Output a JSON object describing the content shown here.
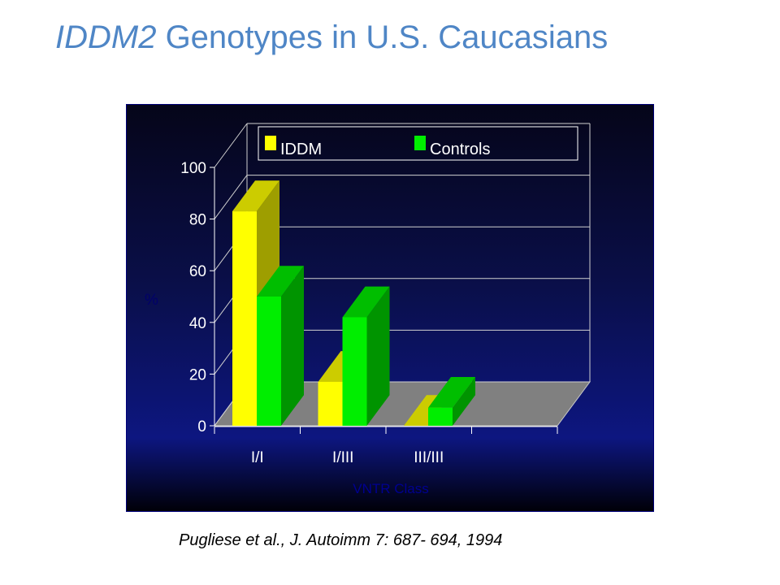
{
  "slide": {
    "title_italic": "IDDM2",
    "title_rest": " Genotypes in U.S. Caucasians",
    "citation": "Pugliese et al., J. Autoimm 7: 687- 694, 1994"
  },
  "colors": {
    "title": "#4f86c6",
    "iddm": "#ffff00",
    "controls": "#00ee00",
    "floor": "#808080",
    "panel_top": "#050519",
    "panel_mid": "#0d1680"
  },
  "chart_data": {
    "type": "bar",
    "title": "",
    "xlabel": "VNTR Class",
    "ylabel": "%",
    "categories": [
      "I/I",
      "I/III",
      "III/III"
    ],
    "series": [
      {
        "name": "IDDM",
        "values": [
          83,
          17,
          0
        ]
      },
      {
        "name": "Controls",
        "values": [
          50,
          42,
          7
        ]
      }
    ],
    "ylim": [
      0,
      100
    ],
    "yticks": [
      0,
      20,
      40,
      60,
      80,
      100
    ],
    "grid": true,
    "legend_position": "top"
  }
}
